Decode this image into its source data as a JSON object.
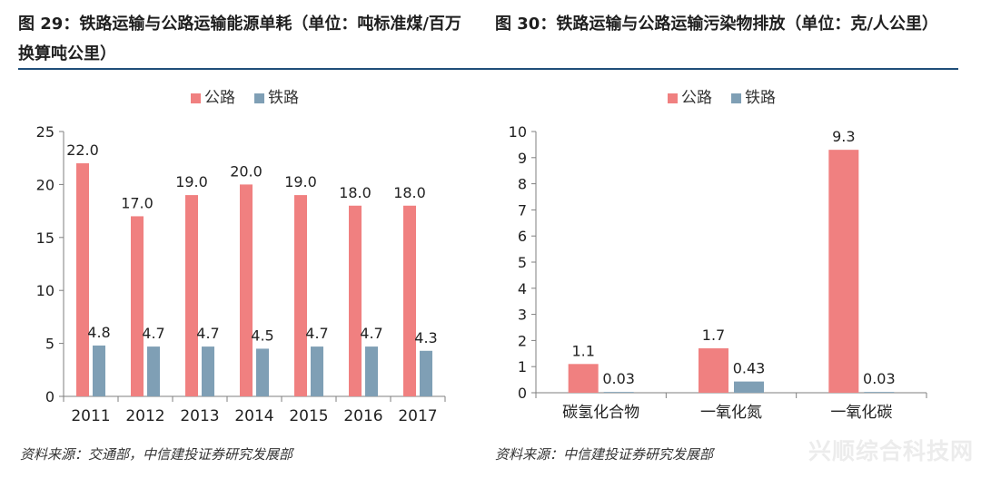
{
  "titles": {
    "left": "图 29：铁路运输与公路运输能源单耗（单位：吨标准煤/百万换算吨公里）",
    "right": "图 30：铁路运输与公路运输污染物排放（单位：克/人公里）"
  },
  "sources": {
    "left": "资料来源：交通部，中信建投证券研究发展部",
    "right": "资料来源：中信建投证券研究发展部"
  },
  "watermark": "兴顺综合科技网",
  "colors": {
    "road": "#f08080",
    "rail": "#7f9fb5",
    "axis": "#7f7f7f",
    "rule": "#1f4e79"
  },
  "chart_data": [
    {
      "type": "bar",
      "categories": [
        "2011",
        "2012",
        "2013",
        "2014",
        "2015",
        "2016",
        "2017"
      ],
      "series": [
        {
          "name": "公路",
          "values": [
            22.0,
            17.0,
            19.0,
            20.0,
            19.0,
            18.0,
            18.0
          ],
          "labels": [
            "22.0",
            "17.0",
            "19.0",
            "20.0",
            "19.0",
            "18.0",
            "18.0"
          ]
        },
        {
          "name": "铁路",
          "values": [
            4.8,
            4.7,
            4.7,
            4.5,
            4.7,
            4.7,
            4.3
          ],
          "labels": [
            "4.8",
            "4.7",
            "4.7",
            "4.5",
            "4.7",
            "4.7",
            "4.3"
          ]
        }
      ],
      "ylim": [
        0,
        25
      ],
      "yticks": [
        0,
        5,
        10,
        15,
        20,
        25
      ],
      "legend": "top-center",
      "grid": false
    },
    {
      "type": "bar",
      "categories": [
        "碳氢化合物",
        "一氧化氮",
        "一氧化碳"
      ],
      "series": [
        {
          "name": "公路",
          "values": [
            1.1,
            1.7,
            9.3
          ],
          "labels": [
            "1.1",
            "1.7",
            "9.3"
          ]
        },
        {
          "name": "铁路",
          "values": [
            0.03,
            0.43,
            0.03
          ],
          "labels": [
            "0.03",
            "0.43",
            "0.03"
          ]
        }
      ],
      "ylim": [
        0,
        10
      ],
      "yticks": [
        0,
        1,
        2,
        3,
        4,
        5,
        6,
        7,
        8,
        9,
        10
      ],
      "legend": "top-center",
      "grid": false
    }
  ]
}
